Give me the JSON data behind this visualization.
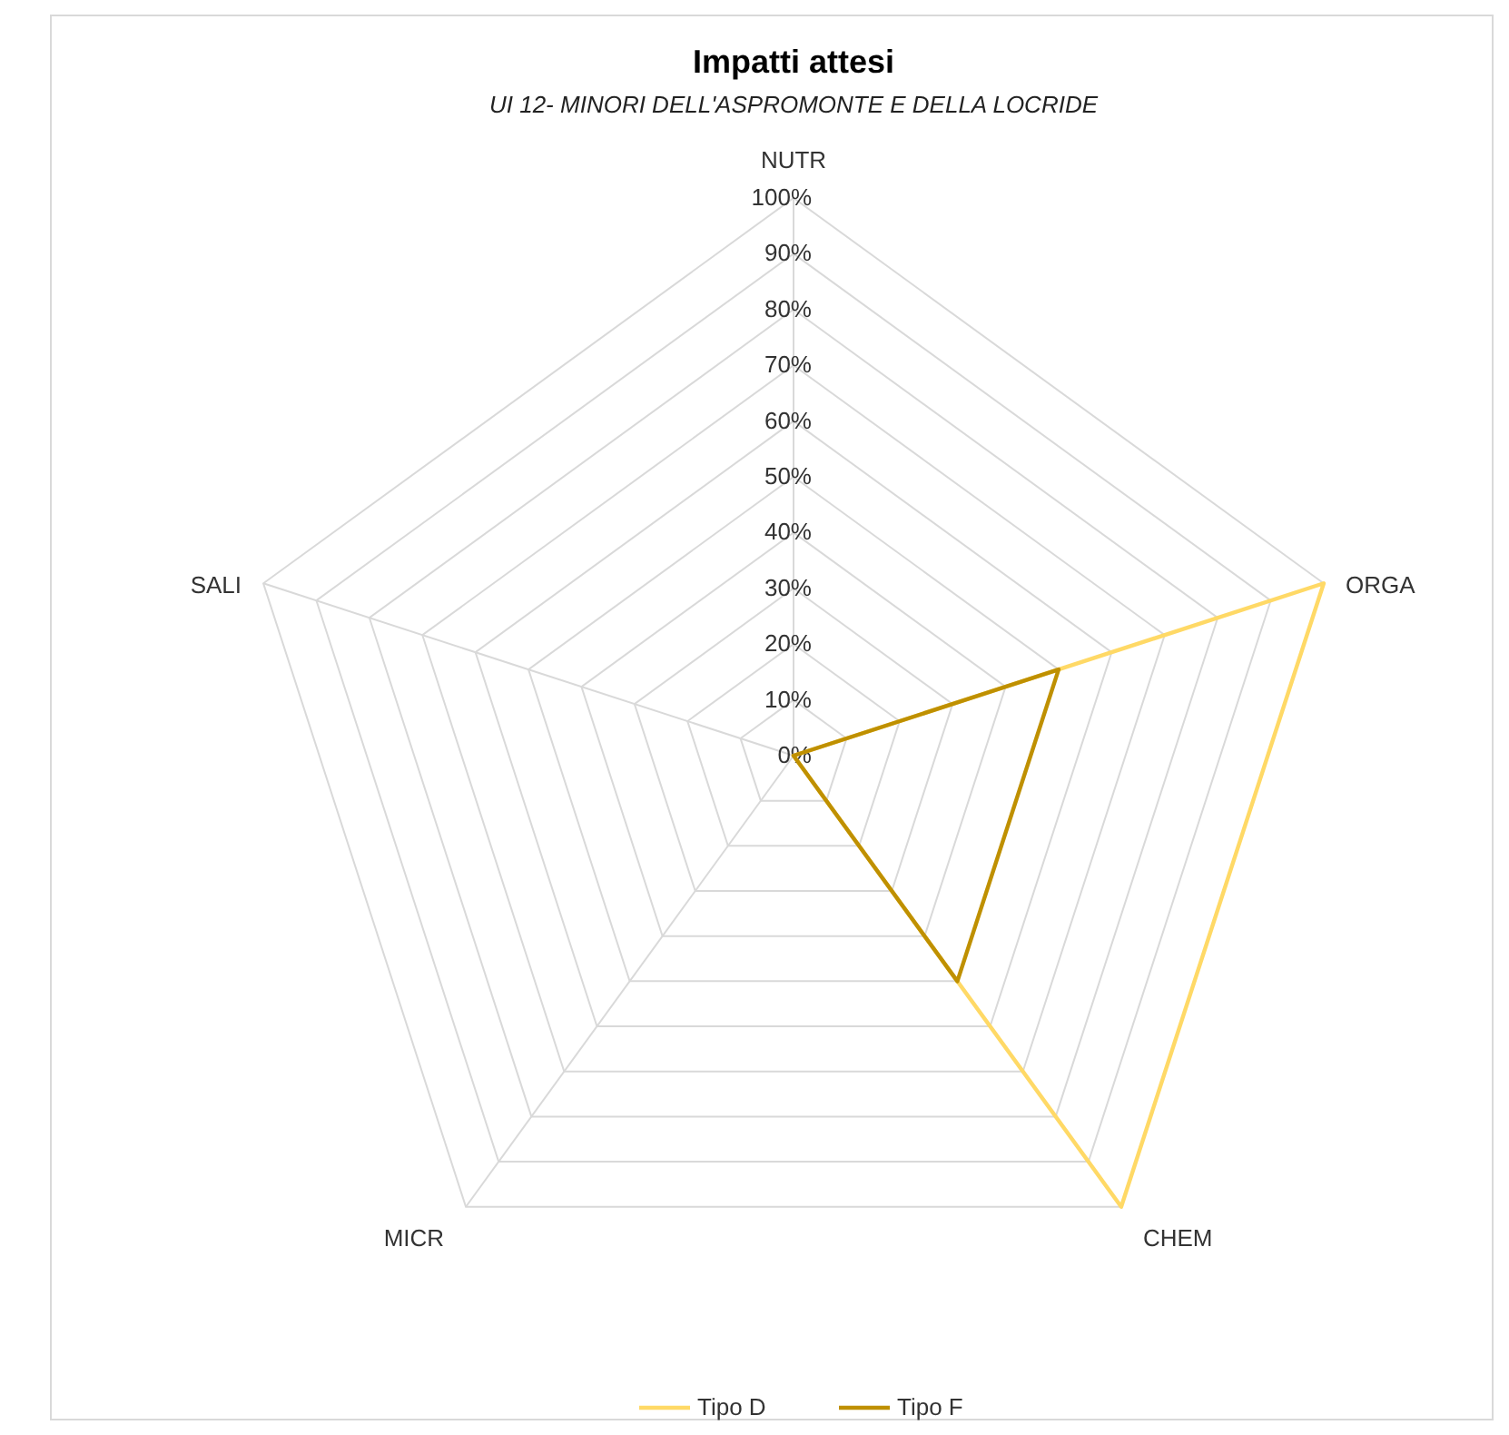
{
  "chart_data": {
    "type": "radar",
    "title": "Impatti attesi",
    "subtitle": "UI 12- MINORI DELL'ASPROMONTE  E DELLA LOCRIDE",
    "categories": [
      "NUTR",
      "ORGA",
      "CHEM",
      "MICR",
      "SALI"
    ],
    "series": [
      {
        "name": "Tipo D",
        "color": "#ffd966",
        "values": [
          0,
          100,
          100,
          0,
          0
        ]
      },
      {
        "name": "Tipo F",
        "color": "#bf9000",
        "values": [
          0,
          50,
          50,
          0,
          0
        ]
      }
    ],
    "ylim": [
      0,
      100
    ],
    "yticks": [
      {
        "value": 0,
        "label": "0%"
      },
      {
        "value": 10,
        "label": "10%"
      },
      {
        "value": 20,
        "label": "20%"
      },
      {
        "value": 30,
        "label": "30%"
      },
      {
        "value": 40,
        "label": "40%"
      },
      {
        "value": 50,
        "label": "50%"
      },
      {
        "value": 60,
        "label": "60%"
      },
      {
        "value": 70,
        "label": "70%"
      },
      {
        "value": 80,
        "label": "80%"
      },
      {
        "value": 90,
        "label": "90%"
      },
      {
        "value": 100,
        "label": "100%"
      }
    ],
    "grid": true,
    "legend": "bottom",
    "line_style": "solid",
    "marker": "none"
  }
}
